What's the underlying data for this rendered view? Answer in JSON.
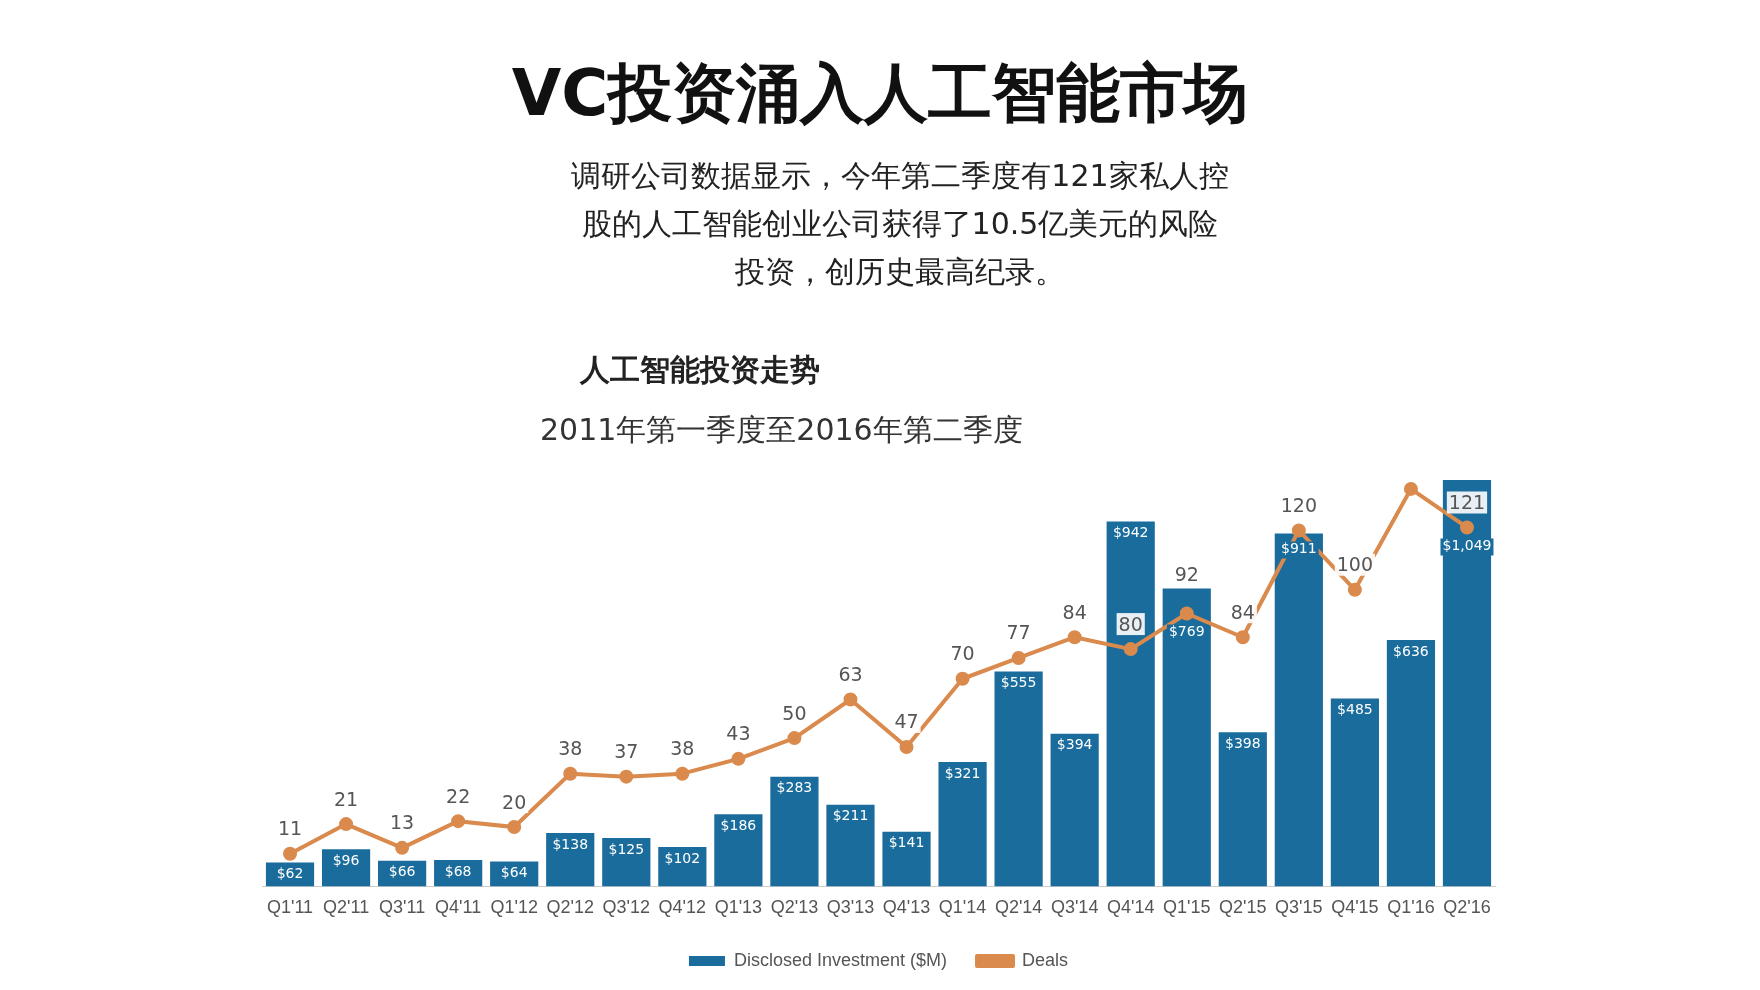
{
  "chart_data": {
    "type": "bar",
    "title": "VC投资涌入人工智能市场",
    "subtitle": "调研公司数据显示，今年第二季度有121家私人控股的人工智能创业公司获得了10.5亿美元的风险投资，创历史最高纪录。",
    "annotations": [
      "人工智能投资走势",
      "2011年第一季度至2016年第二季度"
    ],
    "categories": [
      "Q1'11",
      "Q2'11",
      "Q3'11",
      "Q4'11",
      "Q1'12",
      "Q2'12",
      "Q3'12",
      "Q4'12",
      "Q1'13",
      "Q2'13",
      "Q3'13",
      "Q4'13",
      "Q1'14",
      "Q2'14",
      "Q3'14",
      "Q4'14",
      "Q1'15",
      "Q2'15",
      "Q3'15",
      "Q4'15",
      "Q1'16",
      "Q2'16"
    ],
    "ylim": [
      0,
      1049
    ],
    "y2lim": [
      0,
      137
    ],
    "legend": "bottom",
    "grid": false,
    "series": [
      {
        "name": "Disclosed Investment ($M)",
        "color": "#1a6c9c",
        "values": [
          62,
          96,
          66,
          68,
          64,
          138,
          125,
          102,
          186,
          283,
          211,
          141,
          321,
          555,
          394,
          942,
          769,
          398,
          911,
          485,
          636,
          1049
        ],
        "value_labels": [
          "$62",
          "$96",
          "$66",
          "$68",
          "$64",
          "$138",
          "$125",
          "$102",
          "$186",
          "$283",
          "$211",
          "$141",
          "$321",
          "$555",
          "$394",
          "$942",
          "$769",
          "$398",
          "$911",
          "$485",
          "$636",
          "$1,049"
        ]
      },
      {
        "name": "Deals",
        "type": "line",
        "axis": "y2",
        "color": "#d98a4c",
        "marker": "circle",
        "values": [
          11,
          21,
          13,
          22,
          20,
          38,
          37,
          38,
          43,
          50,
          63,
          47,
          70,
          77,
          84,
          80,
          92,
          84,
          120,
          100,
          134,
          121
        ],
        "value_labels": [
          "11",
          "21",
          "13",
          "22",
          "20",
          "38",
          "37",
          "38",
          "43",
          "50",
          "63",
          "47",
          "70",
          "77",
          "84",
          "80",
          "92",
          "84",
          "120",
          "100",
          null,
          "121"
        ]
      }
    ]
  }
}
